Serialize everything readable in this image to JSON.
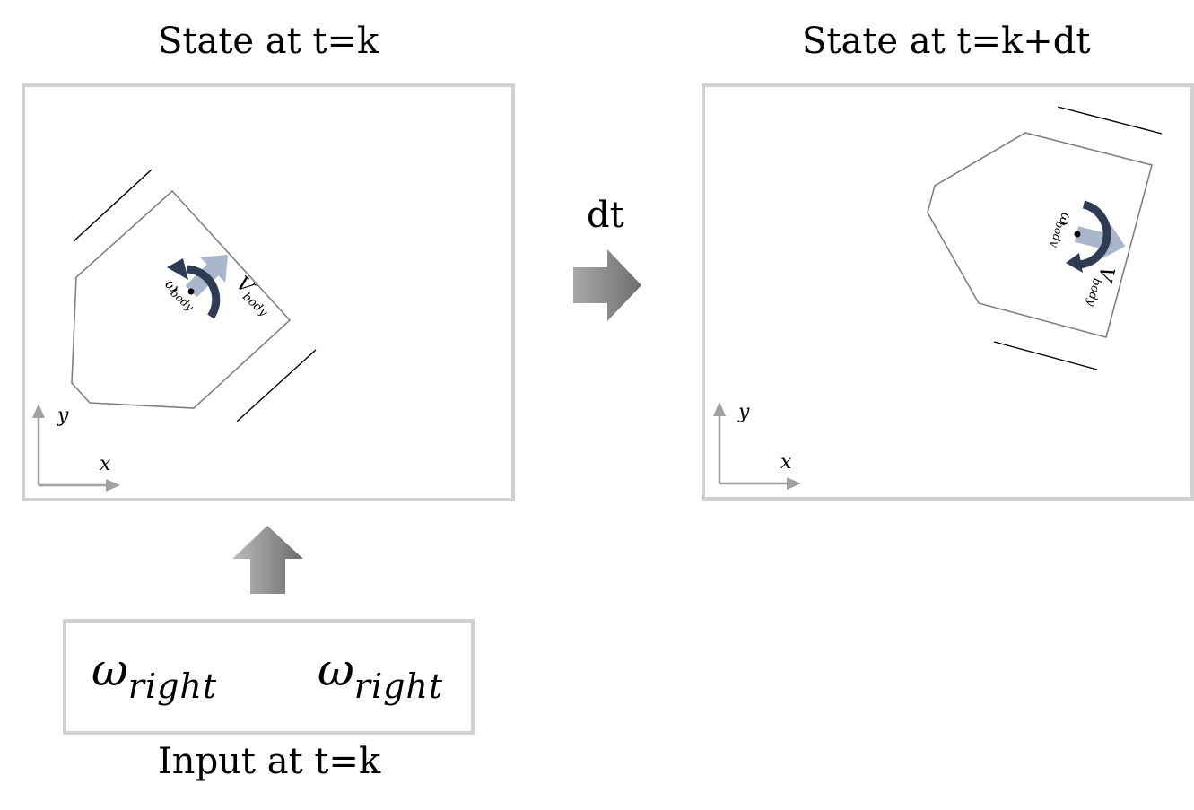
{
  "left_panel": {
    "title": "State at t=k",
    "x_label": "x",
    "y_label": "y",
    "v_label": "V",
    "v_sub": "body",
    "w_label": "ω",
    "w_sub": "body"
  },
  "right_panel": {
    "title": "State at t=k+dt",
    "x_label": "x",
    "y_label": "y",
    "v_label": "V",
    "v_sub": "body",
    "w_label": "ω",
    "w_sub": "body"
  },
  "transition": {
    "label": "dt"
  },
  "input": {
    "caption": "Input at t=k",
    "items": [
      {
        "symbol": "ω",
        "subscript": "right"
      },
      {
        "symbol": "ω",
        "subscript": "right"
      }
    ]
  },
  "colors": {
    "panel_border": "#d0d0d0",
    "arrow_gray": "#8a8a8a",
    "velocity_arrow": "#a9b6cb",
    "rotation_arrow": "#2e3b52",
    "outline": "#808080"
  }
}
